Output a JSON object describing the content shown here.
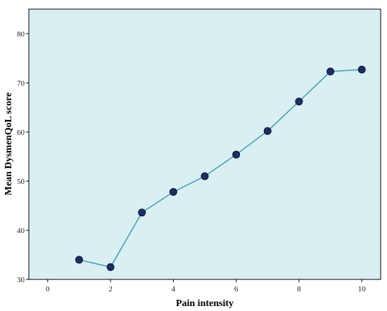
{
  "chart_data": {
    "type": "line",
    "xlabel": "Pain intensity",
    "ylabel": "Mean DysmenQoL score",
    "xlim": [
      -0.6,
      10.6
    ],
    "ylim": [
      30,
      85
    ],
    "xticks": [
      0,
      2,
      4,
      6,
      8,
      10
    ],
    "yticks": [
      30,
      40,
      50,
      60,
      70,
      80
    ],
    "grid": false,
    "series": [
      {
        "x": [
          1,
          2,
          3,
          4,
          5,
          6,
          7,
          8,
          9,
          10
        ],
        "y": [
          34.0,
          32.5,
          43.6,
          47.8,
          51.0,
          55.4,
          60.2,
          66.2,
          72.3,
          72.7
        ]
      }
    ],
    "colors": {
      "plot_background": "#d9eff2",
      "line": "#3a9fb5",
      "marker_fill": "#1e2d63",
      "marker_stroke": "#0d1533"
    }
  }
}
